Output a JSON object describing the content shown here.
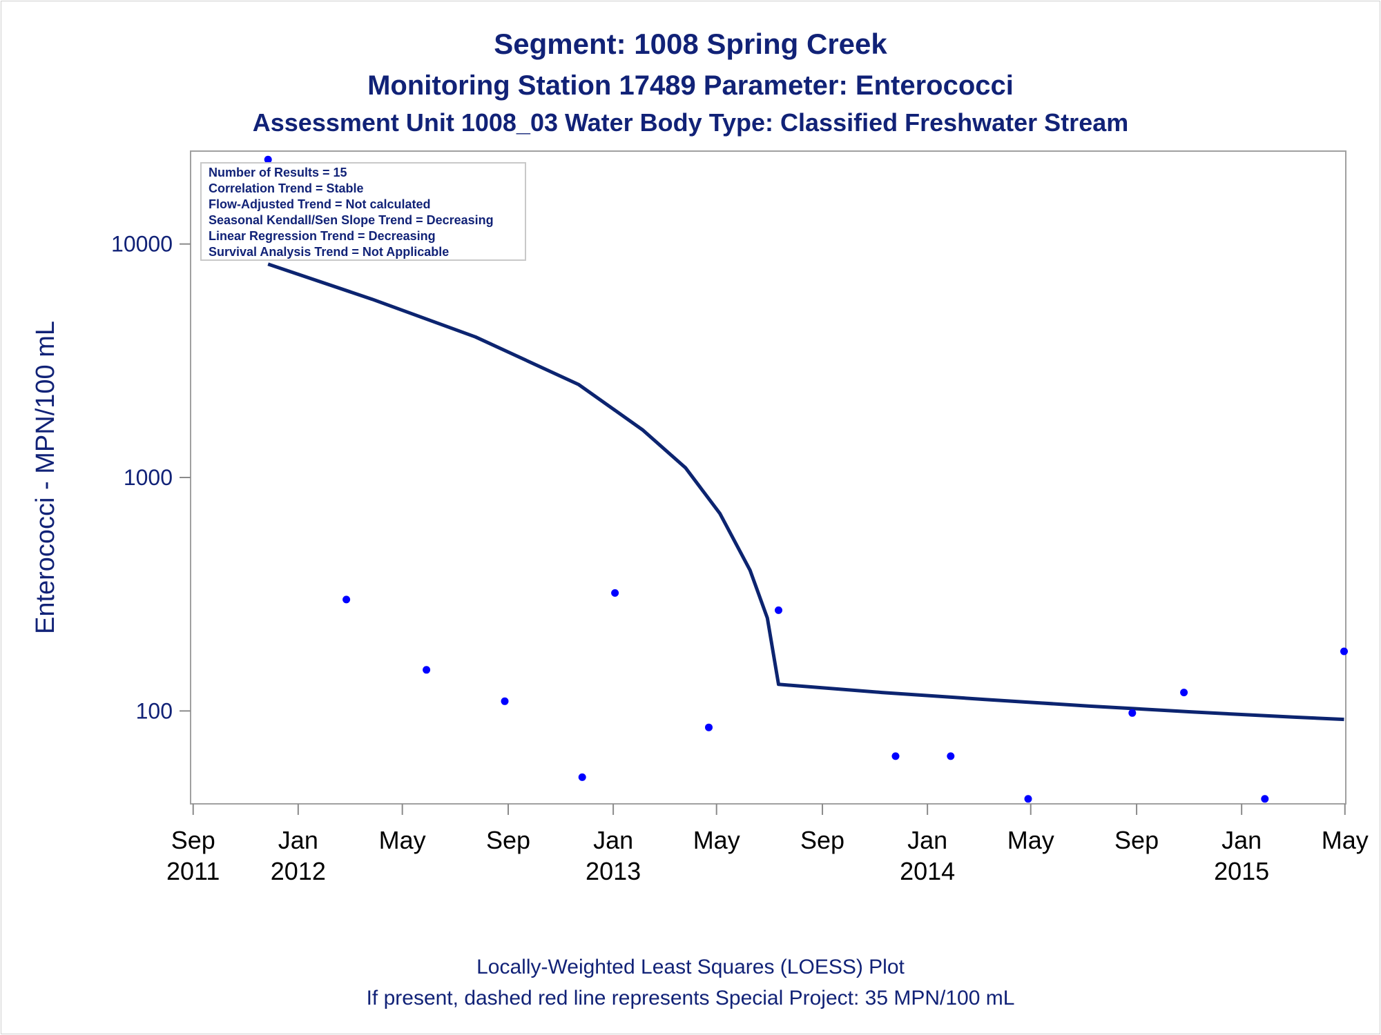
{
  "titles": {
    "line1": "Segment: 1008  Spring Creek",
    "line2": "Monitoring Station 17489 Parameter: Enterococci",
    "line3": "Assessment Unit 1008_03   Water Body Type: Classified Freshwater Stream"
  },
  "inset": {
    "lines": [
      "Number of Results = 15",
      "Correlation Trend = Stable",
      "Flow-Adjusted Trend = Not calculated",
      "Seasonal Kendall/Sen Slope Trend = Decreasing",
      "Linear Regression Trend = Decreasing",
      "Survival Analysis Trend = Not Applicable"
    ]
  },
  "footnotes": {
    "line1": "Locally-Weighted Least Squares (LOESS) Plot",
    "line2": "If present, dashed red line represents Special Project: 35 MPN/100 mL"
  },
  "colors": {
    "text": "#112277",
    "loess_line": "#0c2470",
    "points": "#0000ff",
    "frame": "#a0a0a0"
  },
  "chart_data": {
    "type": "scatter",
    "ylabel": "Enterococci - MPN/100 mL",
    "yscale": "log",
    "ylim": [
      40,
      25000
    ],
    "xlim": [
      "2011-08-29",
      "2015-05-02"
    ],
    "y_ticks": [
      100,
      1000,
      10000
    ],
    "y_tick_labels": [
      "100",
      "1000",
      "10000"
    ],
    "x_ticks": [
      {
        "date": "2011-09-01",
        "label": [
          "Sep",
          "2011"
        ]
      },
      {
        "date": "2012-01-01",
        "label": [
          "Jan",
          "2012"
        ]
      },
      {
        "date": "2012-05-01",
        "label": [
          "May",
          ""
        ]
      },
      {
        "date": "2012-09-01",
        "label": [
          "Sep",
          ""
        ]
      },
      {
        "date": "2013-01-01",
        "label": [
          "Jan",
          "2013"
        ]
      },
      {
        "date": "2013-05-01",
        "label": [
          "May",
          ""
        ]
      },
      {
        "date": "2013-09-01",
        "label": [
          "Sep",
          ""
        ]
      },
      {
        "date": "2014-01-01",
        "label": [
          "Jan",
          "2014"
        ]
      },
      {
        "date": "2014-05-01",
        "label": [
          "May",
          ""
        ]
      },
      {
        "date": "2014-09-01",
        "label": [
          "Sep",
          ""
        ]
      },
      {
        "date": "2015-01-01",
        "label": [
          "Jan",
          "2015"
        ]
      },
      {
        "date": "2015-05-01",
        "label": [
          "May",
          ""
        ]
      }
    ],
    "legend": "top-left",
    "grid": false,
    "series": [
      {
        "type": "scatter",
        "points": [
          {
            "x": "2011-11-27",
            "y": 23000
          },
          {
            "x": "2012-02-26",
            "y": 300
          },
          {
            "x": "2012-05-29",
            "y": 150
          },
          {
            "x": "2012-08-28",
            "y": 110
          },
          {
            "x": "2012-11-26",
            "y": 52
          },
          {
            "x": "2013-01-03",
            "y": 320
          },
          {
            "x": "2013-04-22",
            "y": 85
          },
          {
            "x": "2013-07-12",
            "y": 270
          },
          {
            "x": "2013-11-25",
            "y": 64
          },
          {
            "x": "2014-01-28",
            "y": 64
          },
          {
            "x": "2014-04-28",
            "y": 42
          },
          {
            "x": "2014-08-27",
            "y": 98
          },
          {
            "x": "2014-10-26",
            "y": 120
          },
          {
            "x": "2015-01-28",
            "y": 42
          },
          {
            "x": "2015-04-30",
            "y": 180
          }
        ]
      },
      {
        "type": "line",
        "points": [
          {
            "x": "2011-11-27",
            "y": 8200
          },
          {
            "x": "2012-03-27",
            "y": 5800
          },
          {
            "x": "2012-07-25",
            "y": 4000
          },
          {
            "x": "2012-11-22",
            "y": 2500
          },
          {
            "x": "2013-02-04",
            "y": 1600
          },
          {
            "x": "2013-03-26",
            "y": 1100
          },
          {
            "x": "2013-05-05",
            "y": 700
          },
          {
            "x": "2013-06-09",
            "y": 400
          },
          {
            "x": "2013-06-29",
            "y": 250
          },
          {
            "x": "2013-07-12",
            "y": 130
          },
          {
            "x": "2013-11-09",
            "y": 120
          },
          {
            "x": "2014-03-09",
            "y": 112
          },
          {
            "x": "2014-07-07",
            "y": 105
          },
          {
            "x": "2014-11-04",
            "y": 99
          },
          {
            "x": "2015-03-04",
            "y": 94
          },
          {
            "x": "2015-04-30",
            "y": 92
          }
        ]
      }
    ]
  }
}
